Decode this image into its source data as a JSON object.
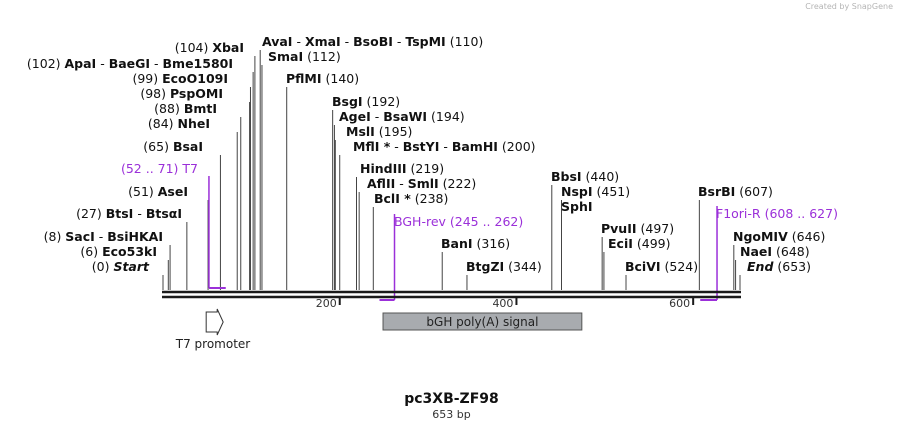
{
  "credit": "Created by SnapGene",
  "plasmid": {
    "name": "pc3XB-ZF98",
    "size_label": "653 bp"
  },
  "colors": {
    "primer": "#9b30d9",
    "ruler": "#1a1a1a",
    "leader": "#444444",
    "feature_fill": "#a8abaf"
  },
  "sites": [
    {
      "pos": "(110)",
      "parts": [
        "AvaI",
        "XmaI",
        "BsoBI",
        "TspMI"
      ],
      "bp": 110
    },
    {
      "pos": "(104)",
      "parts": [
        "XbaI"
      ],
      "bp": 104
    },
    {
      "pos": "(112)",
      "parts": [
        "SmaI"
      ],
      "bp": 112
    },
    {
      "pos": "(102)",
      "parts": [
        "ApaI",
        "BaeGI",
        "Bme1580I"
      ],
      "bp": 102
    },
    {
      "pos": "(99)",
      "parts": [
        "EcoO109I"
      ],
      "bp": 99
    },
    {
      "pos": "(140)",
      "parts": [
        "PflMI"
      ],
      "bp": 140
    },
    {
      "pos": "(98)",
      "parts": [
        "PspOMI"
      ],
      "bp": 98
    },
    {
      "pos": "(88)",
      "parts": [
        "BmtI"
      ],
      "bp": 88
    },
    {
      "pos": "(192)",
      "parts": [
        "BsgI"
      ],
      "bp": 192
    },
    {
      "pos": "(194)",
      "parts": [
        "AgeI",
        "BsaWI"
      ],
      "bp": 194
    },
    {
      "pos": "(84)",
      "parts": [
        "NheI"
      ],
      "bp": 84
    },
    {
      "pos": "(195)",
      "parts": [
        "MslI"
      ],
      "bp": 195
    },
    {
      "pos": "(65)",
      "parts": [
        "BsaI"
      ],
      "bp": 65
    },
    {
      "pos": "(200)",
      "parts": [
        "MflI *",
        "BstYI",
        "BamHI"
      ],
      "bp": 200
    },
    {
      "pos": "(219)",
      "parts": [
        "HindIII"
      ],
      "bp": 219
    },
    {
      "pos": "(440)",
      "parts": [
        "BbsI"
      ],
      "bp": 440
    },
    {
      "pos": "(222)",
      "parts": [
        "AflII",
        "SmlI"
      ],
      "bp": 222
    },
    {
      "pos": "(51)",
      "parts": [
        "AseI"
      ],
      "bp": 51
    },
    {
      "pos": "(451)",
      "parts": [
        "NspI"
      ],
      "bp": 451
    },
    {
      "pos": "(607)",
      "parts": [
        "BsrBI"
      ],
      "bp": 607
    },
    {
      "pos": "(238)",
      "parts": [
        "BclI *"
      ],
      "bp": 238
    },
    {
      "pos": "",
      "parts": [
        "SphI"
      ],
      "bp": 451
    },
    {
      "pos": "(27)",
      "parts": [
        "BtsI",
        "BtsαI"
      ],
      "bp": 27
    },
    {
      "pos": "(497)",
      "parts": [
        "PvuII"
      ],
      "bp": 497
    },
    {
      "pos": "(8)",
      "parts": [
        "SacI",
        "BsiHKAI"
      ],
      "bp": 8
    },
    {
      "pos": "(499)",
      "parts": [
        "EciI"
      ],
      "bp": 499
    },
    {
      "pos": "(316)",
      "parts": [
        "BanI"
      ],
      "bp": 316
    },
    {
      "pos": "(646)",
      "parts": [
        "NgoMIV"
      ],
      "bp": 646
    },
    {
      "pos": "(6)",
      "parts": [
        "Eco53kI"
      ],
      "bp": 6
    },
    {
      "pos": "(648)",
      "parts": [
        "NaeI"
      ],
      "bp": 648
    },
    {
      "pos": "(0)",
      "parts": [
        "Start"
      ],
      "bp": 0,
      "italic": true
    },
    {
      "pos": "(344)",
      "parts": [
        "BtgZI"
      ],
      "bp": 344
    },
    {
      "pos": "(524)",
      "parts": [
        "BciVI"
      ],
      "bp": 524
    },
    {
      "pos": "(653)",
      "parts": [
        "End"
      ],
      "bp": 653,
      "italic": true
    }
  ],
  "primers": [
    {
      "name": "T7",
      "range": "(52 .. 71)",
      "start": 52,
      "end": 71
    },
    {
      "name": "BGH-rev",
      "range": "(245 .. 262)",
      "start": 245,
      "end": 262
    },
    {
      "name": "F1ori-R",
      "range": "(608 .. 627)",
      "start": 608,
      "end": 627
    }
  ],
  "ruler_ticks": [
    {
      "label": "200",
      "bp": 200
    },
    {
      "label": "400",
      "bp": 400
    },
    {
      "label": "600",
      "bp": 600
    }
  ],
  "features": [
    {
      "name": "bGH poly(A) signal",
      "start": 249,
      "end": 474
    },
    {
      "name": "T7 promoter",
      "start": 50,
      "end": 68
    }
  ]
}
